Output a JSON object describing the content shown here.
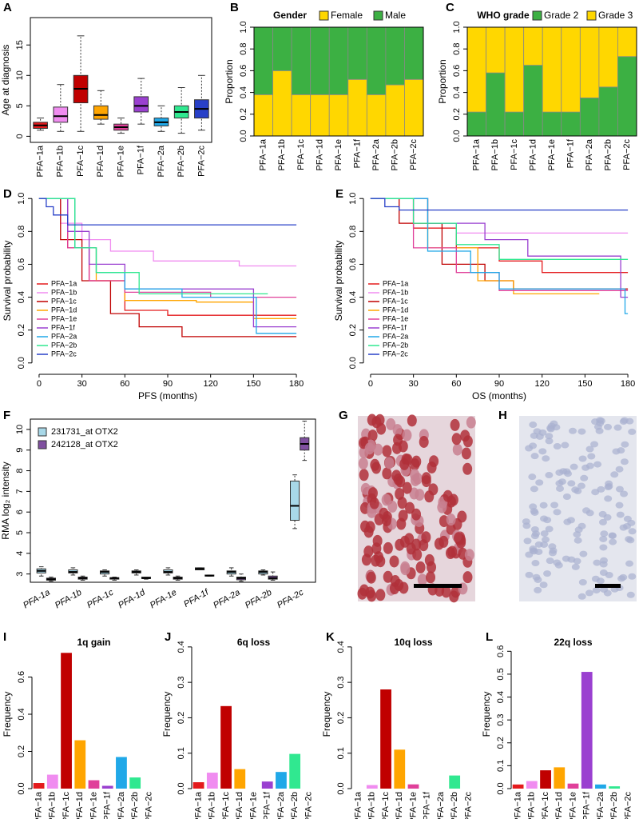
{
  "chart_data": [
    {
      "panel": "A",
      "type": "box",
      "y_label": "Age at diagnosis",
      "categories": [
        "PFA−1a",
        "PFA−1b",
        "PFA−1c",
        "PFA−1d",
        "PFA−1e",
        "PFA−1f",
        "PFA−2a",
        "PFA−2b",
        "PFA−2c"
      ],
      "colors": [
        "#e41a1c",
        "#f08cf0",
        "#c00000",
        "#ffa500",
        "#e0409a",
        "#9a40d0",
        "#20a8e8",
        "#30e890",
        "#2840c8"
      ],
      "boxes": [
        [
          1,
          1.3,
          1.8,
          2.3,
          3
        ],
        [
          0.8,
          2.3,
          3.3,
          4.8,
          8.5
        ],
        [
          0.8,
          5.5,
          7.8,
          10,
          16.5
        ],
        [
          2,
          2.8,
          3.5,
          5,
          7.5
        ],
        [
          0.5,
          1,
          1.5,
          2,
          3
        ],
        [
          2,
          4,
          5,
          6.5,
          9.5
        ],
        [
          0.8,
          1.7,
          2.3,
          3,
          5
        ],
        [
          0.5,
          3,
          4,
          5,
          8
        ],
        [
          1,
          3,
          4.5,
          6,
          10
        ]
      ],
      "ylim": [
        -1,
        19.5
      ],
      "yticks": [
        0,
        5,
        10,
        15
      ]
    },
    {
      "panel": "B",
      "type": "stacked-bar",
      "title": "Gender",
      "y_label": "Proportion",
      "categories": [
        "PFA−1a",
        "PFA−1b",
        "PFA−1c",
        "PFA−1d",
        "PFA−1e",
        "PFA−1f",
        "PFA−2a",
        "PFA−2b",
        "PFA−2c"
      ],
      "series": [
        {
          "name": "Female",
          "color": "#ffd700",
          "values": [
            0.38,
            0.6,
            0.38,
            0.38,
            0.38,
            0.52,
            0.38,
            0.47,
            0.52
          ]
        },
        {
          "name": "Male",
          "color": "#3cb043",
          "values": [
            0.62,
            0.4,
            0.62,
            0.62,
            0.62,
            0.48,
            0.62,
            0.53,
            0.48
          ]
        }
      ],
      "ylim": [
        0,
        1
      ],
      "yticks": [
        {
          "value": 0,
          "label": "0.0"
        },
        0.2,
        0.4,
        0.6,
        0.8,
        {
          "value": 1,
          "label": "1.0"
        }
      ]
    },
    {
      "panel": "C",
      "type": "stacked-bar",
      "title": "WHO grade",
      "y_label": "Proportion",
      "categories": [
        "PFA−1a",
        "PFA−1b",
        "PFA−1c",
        "PFA−1d",
        "PFA−1e",
        "PFA−1f",
        "PFA−2a",
        "PFA−2b",
        "PFA−2c"
      ],
      "series": [
        {
          "name": "Grade 2",
          "color": "#3cb043",
          "values": [
            0.22,
            0.58,
            0.22,
            0.65,
            0.22,
            0.22,
            0.35,
            0.45,
            0.73
          ]
        },
        {
          "name": "Grade 3",
          "color": "#ffd700",
          "values": [
            0.78,
            0.42,
            0.78,
            0.35,
            0.78,
            0.78,
            0.65,
            0.55,
            0.27
          ]
        }
      ],
      "ylim": [
        0,
        1
      ],
      "yticks": [
        {
          "value": 0,
          "label": "0.0"
        },
        0.2,
        0.4,
        0.6,
        0.8,
        {
          "value": 1,
          "label": "1.0"
        }
      ]
    },
    {
      "panel": "D",
      "type": "step-line",
      "x_label": "PFS (months)",
      "y_label": "Survival probability",
      "legend": "bottom-left",
      "series": [
        {
          "name": "PFA−1a",
          "color": "#e41a1c",
          "x": [
            0,
            20,
            20,
            35,
            35,
            60,
            60,
            90,
            90,
            180
          ],
          "values": [
            1,
            1,
            0.7,
            0.7,
            0.5,
            0.5,
            0.32,
            0.32,
            0.29,
            0.29
          ]
        },
        {
          "name": "PFA−1b",
          "color": "#f08cf0",
          "x": [
            0,
            15,
            15,
            30,
            30,
            50,
            50,
            80,
            80,
            140,
            140,
            180
          ],
          "values": [
            1,
            1,
            0.85,
            0.85,
            0.75,
            0.75,
            0.68,
            0.68,
            0.62,
            0.62,
            0.59,
            0.59
          ]
        },
        {
          "name": "PFA−1c",
          "color": "#c00000",
          "x": [
            0,
            15,
            15,
            30,
            30,
            50,
            50,
            70,
            70,
            100,
            100,
            180
          ],
          "values": [
            1,
            1,
            0.75,
            0.75,
            0.5,
            0.5,
            0.3,
            0.3,
            0.22,
            0.22,
            0.16,
            0.16
          ]
        },
        {
          "name": "PFA−1d",
          "color": "#ffa500",
          "x": [
            0,
            25,
            25,
            40,
            40,
            60,
            60,
            110,
            110,
            150,
            150,
            180
          ],
          "values": [
            1,
            1,
            0.7,
            0.7,
            0.5,
            0.5,
            0.38,
            0.38,
            0.37,
            0.37,
            0.27,
            0.27
          ]
        },
        {
          "name": "PFA−1e",
          "color": "#e0409a",
          "x": [
            0,
            20,
            20,
            35,
            35,
            60,
            60,
            120,
            120,
            180
          ],
          "values": [
            1,
            1,
            0.7,
            0.7,
            0.5,
            0.5,
            0.43,
            0.43,
            0.4,
            0.4
          ]
        },
        {
          "name": "PFA−1f",
          "color": "#9a40d0",
          "x": [
            0,
            20,
            20,
            35,
            35,
            60,
            60,
            150,
            150,
            180
          ],
          "values": [
            1,
            1,
            0.8,
            0.8,
            0.6,
            0.6,
            0.45,
            0.45,
            0.22,
            0.22
          ]
        },
        {
          "name": "PFA−2a",
          "color": "#20a8e8",
          "x": [
            0,
            25,
            25,
            40,
            40,
            60,
            60,
            100,
            100,
            152,
            152,
            180
          ],
          "values": [
            1,
            1,
            0.7,
            0.7,
            0.55,
            0.55,
            0.45,
            0.45,
            0.4,
            0.4,
            0.18,
            0.18
          ]
        },
        {
          "name": "PFA−2b",
          "color": "#30e890",
          "x": [
            0,
            25,
            25,
            40,
            40,
            70,
            70,
            160
          ],
          "values": [
            1,
            1,
            0.7,
            0.7,
            0.55,
            0.55,
            0.42,
            0.42
          ]
        },
        {
          "name": "PFA−2c",
          "color": "#2840c8",
          "x": [
            0,
            5,
            5,
            10,
            10,
            20,
            20,
            180
          ],
          "values": [
            1,
            1,
            0.95,
            0.95,
            0.9,
            0.9,
            0.84,
            0.84
          ]
        }
      ],
      "xlim": [
        -5,
        185
      ],
      "xticks": [
        0,
        30,
        60,
        90,
        120,
        150,
        180
      ],
      "ylim": [
        -0.04,
        1.04
      ],
      "yticks": [
        {
          "value": 0,
          "label": "0.0"
        },
        0.2,
        0.4,
        0.6,
        0.8,
        {
          "value": 1,
          "label": "1.0"
        }
      ]
    },
    {
      "panel": "E",
      "type": "step-line",
      "x_label": "OS (months)",
      "y_label": "Survival probability",
      "legend": "bottom-left",
      "series": [
        {
          "name": "PFA−1a",
          "color": "#e41a1c",
          "x": [
            0,
            30,
            30,
            60,
            60,
            90,
            90,
            120,
            120,
            180
          ],
          "values": [
            1,
            1,
            0.82,
            0.82,
            0.7,
            0.7,
            0.62,
            0.62,
            0.55,
            0.55
          ]
        },
        {
          "name": "PFA−1b",
          "color": "#f08cf0",
          "x": [
            0,
            30,
            30,
            60,
            60,
            180
          ],
          "values": [
            1,
            1,
            0.85,
            0.85,
            0.79,
            0.79
          ]
        },
        {
          "name": "PFA−1c",
          "color": "#c00000",
          "x": [
            0,
            20,
            20,
            50,
            50,
            80,
            80,
            100,
            100,
            180
          ],
          "values": [
            1,
            1,
            0.85,
            0.85,
            0.6,
            0.6,
            0.5,
            0.5,
            0.45,
            0.45
          ]
        },
        {
          "name": "PFA−1d",
          "color": "#ffa500",
          "x": [
            0,
            40,
            40,
            75,
            75,
            100,
            100,
            160
          ],
          "values": [
            1,
            1,
            0.7,
            0.7,
            0.5,
            0.5,
            0.42,
            0.42
          ]
        },
        {
          "name": "PFA−1e",
          "color": "#e0409a",
          "x": [
            0,
            30,
            30,
            60,
            60,
            90,
            90,
            180
          ],
          "values": [
            1,
            1,
            0.7,
            0.7,
            0.55,
            0.55,
            0.44,
            0.44
          ]
        },
        {
          "name": "PFA−1f",
          "color": "#9a40d0",
          "x": [
            0,
            40,
            40,
            80,
            80,
            110,
            110,
            175,
            175,
            180
          ],
          "values": [
            1,
            1,
            0.85,
            0.85,
            0.75,
            0.75,
            0.65,
            0.65,
            0.4,
            0.4
          ]
        },
        {
          "name": "PFA−2a",
          "color": "#20a8e8",
          "x": [
            0,
            40,
            40,
            70,
            70,
            90,
            90,
            178,
            178,
            180
          ],
          "values": [
            1,
            1,
            0.68,
            0.68,
            0.55,
            0.55,
            0.45,
            0.45,
            0.3,
            0.3
          ]
        },
        {
          "name": "PFA−2b",
          "color": "#30e890",
          "x": [
            0,
            30,
            30,
            60,
            60,
            90,
            90,
            180
          ],
          "values": [
            1,
            1,
            0.85,
            0.85,
            0.72,
            0.72,
            0.63,
            0.63
          ]
        },
        {
          "name": "PFA−2c",
          "color": "#2840c8",
          "x": [
            0,
            10,
            10,
            20,
            20,
            180
          ],
          "values": [
            1,
            1,
            0.95,
            0.95,
            0.93,
            0.93
          ]
        }
      ],
      "xlim": [
        -5,
        185
      ],
      "xticks": [
        0,
        30,
        60,
        90,
        120,
        150,
        180
      ],
      "ylim": [
        -0.04,
        1.04
      ],
      "yticks": [
        {
          "value": 0,
          "label": "0.0"
        },
        0.2,
        0.4,
        0.6,
        0.8,
        {
          "value": 1,
          "label": "1.0"
        }
      ]
    },
    {
      "panel": "F",
      "type": "box",
      "y_label": "RMA log₂ intensity",
      "legend": "top-left",
      "categories": [
        "PFA-1a",
        "PFA-1b",
        "PFA-1c",
        "PFA-1d",
        "PFA-1e",
        "PFA-1f",
        "PFA-2a",
        "PFA-2b",
        "PFA-2c"
      ],
      "series": [
        {
          "name": "231731_at OTX2",
          "color": "#a8d8e8",
          "boxes": [
            [
              2.9,
              3.05,
              3.15,
              3.25,
              3.35
            ],
            [
              2.95,
              3.05,
              3.1,
              3.2,
              3.3
            ],
            [
              2.9,
              3,
              3.1,
              3.15,
              3.2
            ],
            [
              2.95,
              3.05,
              3.1,
              3.15,
              3.2
            ],
            [
              2.95,
              3.05,
              3.1,
              3.2,
              3.3
            ],
            [
              3.2,
              3.2,
              3.25,
              3.3,
              3.3
            ],
            [
              2.9,
              3,
              3.1,
              3.15,
              3.3
            ],
            [
              2.95,
              3,
              3.1,
              3.15,
              3.2
            ],
            [
              5.2,
              5.6,
              6.3,
              7.5,
              7.8
            ]
          ]
        },
        {
          "name": "242128_at OTX2",
          "color": "#8050a0",
          "boxes": [
            [
              2.65,
              2.7,
              2.75,
              2.8,
              2.85
            ],
            [
              2.7,
              2.75,
              2.8,
              2.85,
              2.9
            ],
            [
              2.7,
              2.75,
              2.8,
              2.82,
              2.85
            ],
            [
              2.75,
              2.78,
              2.8,
              2.85,
              2.85
            ],
            [
              2.7,
              2.75,
              2.8,
              2.85,
              2.9
            ],
            [
              2.9,
              2.9,
              2.92,
              2.95,
              2.95
            ],
            [
              2.65,
              2.72,
              2.8,
              2.85,
              3
            ],
            [
              2.7,
              2.75,
              2.8,
              2.9,
              3.1
            ],
            [
              8.5,
              9,
              9.3,
              9.6,
              10.4
            ]
          ]
        }
      ],
      "ylim": [
        2.6,
        10.5
      ],
      "yticks": [
        3,
        4,
        5,
        6,
        7,
        8,
        9,
        10
      ]
    },
    {
      "panel": "G",
      "type": "image"
    },
    {
      "panel": "H",
      "type": "image"
    },
    {
      "panel": "I",
      "type": "bar",
      "title": "1q gain",
      "y_label": "Frequency",
      "categories": [
        "PFA−1a",
        "PFA−1b",
        "PFA−1c",
        "PFA−1d",
        "PFA−1e",
        "PFA−1f",
        "PFA−2a",
        "PFA−2b",
        "PFA−2c"
      ],
      "colors": [
        "#e41a1c",
        "#f08cf0",
        "#c00000",
        "#ffa500",
        "#e0409a",
        "#9a40d0",
        "#20a8e8",
        "#30e890",
        "#2840c8"
      ],
      "values": [
        0.03,
        0.075,
        0.73,
        0.26,
        0.045,
        0.015,
        0.17,
        0.06,
        0
      ],
      "ylim": [
        0,
        0.8
      ],
      "yticks": [
        {
          "value": 0,
          "label": "0.0"
        },
        0.2,
        0.4,
        0.6
      ]
    },
    {
      "panel": "J",
      "type": "bar",
      "title": "6q loss",
      "y_label": "Frequency",
      "categories": [
        "PFA−1a",
        "PFA−1b",
        "PFA−1c",
        "PFA−1d",
        "PFA−1e",
        "PFA−1f",
        "PFA−2a",
        "PFA−2b",
        "PFA−2c"
      ],
      "colors": [
        "#e41a1c",
        "#f08cf0",
        "#c00000",
        "#ffa500",
        "#e0409a",
        "#9a40d0",
        "#20a8e8",
        "#30e890",
        "#2840c8"
      ],
      "values": [
        0.018,
        0.045,
        0.233,
        0.055,
        0,
        0.02,
        0.047,
        0.098,
        0
      ],
      "ylim": [
        0,
        0.42
      ],
      "yticks": [
        {
          "value": 0,
          "label": "0.0"
        },
        0.1,
        0.2,
        0.3,
        0.4
      ]
    },
    {
      "panel": "K",
      "type": "bar",
      "title": "10q loss",
      "y_label": "Frequency",
      "categories": [
        "PFA−1a",
        "PFA−1b",
        "PFA−1c",
        "PFA−1d",
        "PFA−1e",
        "PFA−1f",
        "PFA−2a",
        "PFA−2b",
        "PFA−2c"
      ],
      "colors": [
        "#e41a1c",
        "#f08cf0",
        "#c00000",
        "#ffa500",
        "#e0409a",
        "#9a40d0",
        "#20a8e8",
        "#30e890",
        "#2840c8"
      ],
      "values": [
        0,
        0.01,
        0.28,
        0.11,
        0.012,
        0,
        0,
        0.037,
        0
      ],
      "ylim": [
        0,
        0.42
      ],
      "yticks": [
        {
          "value": 0,
          "label": "0.0"
        },
        0.1,
        0.2,
        0.3,
        0.4
      ]
    },
    {
      "panel": "L",
      "type": "bar",
      "title": "22q loss",
      "y_label": "Frequency",
      "categories": [
        "PFA−1a",
        "PFA−1b",
        "PFA−1c",
        "PFA−1d",
        "PFA−1e",
        "PFA−1f",
        "PFA−2a",
        "PFA−2b",
        "PFA−2c"
      ],
      "colors": [
        "#e41a1c",
        "#f08cf0",
        "#c00000",
        "#ffa500",
        "#e0409a",
        "#9a40d0",
        "#20a8e8",
        "#30e890",
        "#2840c8"
      ],
      "values": [
        0.018,
        0.033,
        0.08,
        0.093,
        0.022,
        0.51,
        0.018,
        0.01,
        0
      ],
      "ylim": [
        0,
        0.65
      ],
      "yticks": [
        {
          "value": 0,
          "label": "0.0"
        },
        0.1,
        0.2,
        0.3,
        0.4,
        0.5,
        0.6
      ]
    }
  ]
}
